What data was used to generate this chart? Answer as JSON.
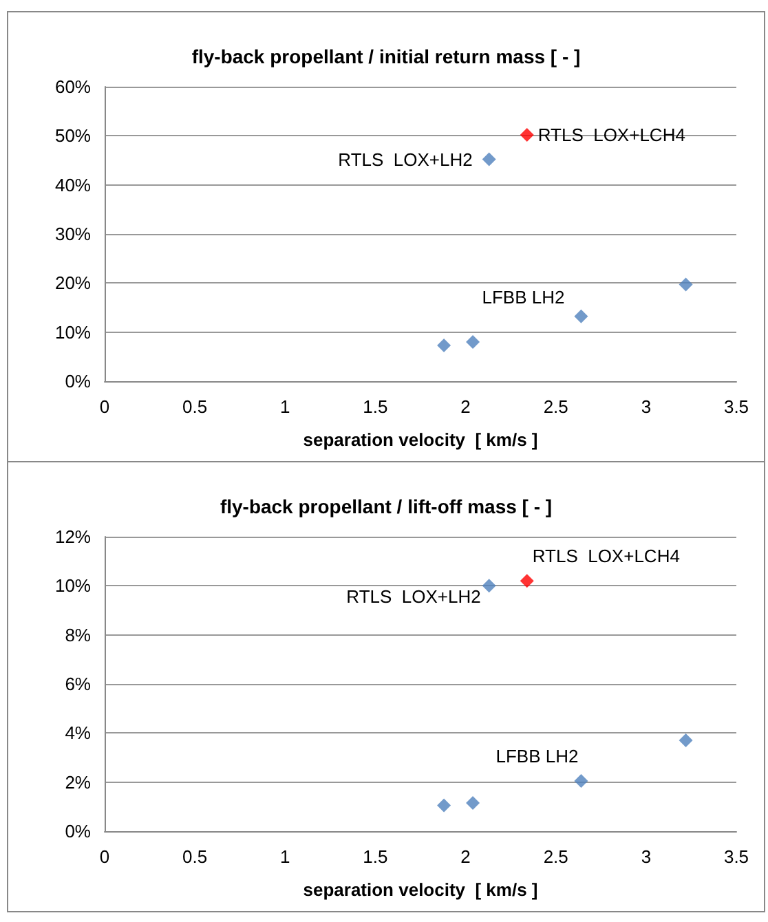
{
  "chart_data": [
    {
      "type": "scatter",
      "title": "fly-back propellant / initial return mass [ - ]",
      "xlabel": "separation velocity  [ km/s ]",
      "series": [
        {
          "color": "#4f81bd",
          "x": [
            1.88,
            2.04,
            2.13,
            2.64,
            3.22
          ],
          "values": [
            7.3,
            8.0,
            45.2,
            13.2,
            19.7
          ]
        },
        {
          "color": "#ff0000",
          "x": [
            2.34
          ],
          "values": [
            50.2
          ]
        }
      ],
      "xlim": [
        0,
        3.5
      ],
      "xticks": [
        0,
        0.5,
        1,
        1.5,
        2,
        2.5,
        3,
        3.5
      ],
      "ylim": [
        0,
        60
      ],
      "yticks": [
        {
          "value": 0,
          "label": "0%"
        },
        {
          "value": 10,
          "label": "10%"
        },
        {
          "value": 20,
          "label": "20%"
        },
        {
          "value": 30,
          "label": "30%"
        },
        {
          "value": 40,
          "label": "40%"
        },
        {
          "value": 50,
          "label": "50%"
        },
        {
          "value": 60,
          "label": "60%"
        }
      ],
      "annotations": [
        {
          "text": "RTLS  LOX+LH2",
          "x": 2.13,
          "y": 45.2
        },
        {
          "text": "RTLS  LOX+LCH4",
          "x": 2.34,
          "y": 50.2
        },
        {
          "text": "LFBB LH2",
          "x": 2.64,
          "y": 13.2
        }
      ],
      "grid": "y",
      "marker": "diamond"
    },
    {
      "type": "scatter",
      "title": "fly-back propellant / lift-off mass [ - ]",
      "xlabel": "separation velocity  [ km/s ]",
      "series": [
        {
          "color": "#4f81bd",
          "x": [
            1.88,
            2.04,
            2.13,
            2.64,
            3.22
          ],
          "values": [
            1.05,
            1.15,
            10.0,
            2.05,
            3.7
          ]
        },
        {
          "color": "#ff0000",
          "x": [
            2.34
          ],
          "values": [
            10.2
          ]
        }
      ],
      "xlim": [
        0,
        3.5
      ],
      "xticks": [
        0,
        0.5,
        1,
        1.5,
        2,
        2.5,
        3,
        3.5
      ],
      "ylim": [
        0,
        12
      ],
      "yticks": [
        {
          "value": 0,
          "label": "0%"
        },
        {
          "value": 2,
          "label": "2%"
        },
        {
          "value": 4,
          "label": "4%"
        },
        {
          "value": 6,
          "label": "6%"
        },
        {
          "value": 8,
          "label": "8%"
        },
        {
          "value": 10,
          "label": "10%"
        },
        {
          "value": 12,
          "label": "12%"
        }
      ],
      "annotations": [
        {
          "text": "RTLS  LOX+LH2",
          "x": 2.13,
          "y": 10.0
        },
        {
          "text": "RTLS  LOX+LCH4",
          "x": 2.34,
          "y": 10.2
        },
        {
          "text": "LFBB LH2",
          "x": 2.64,
          "y": 2.05
        }
      ],
      "grid": "y",
      "marker": "diamond"
    }
  ]
}
